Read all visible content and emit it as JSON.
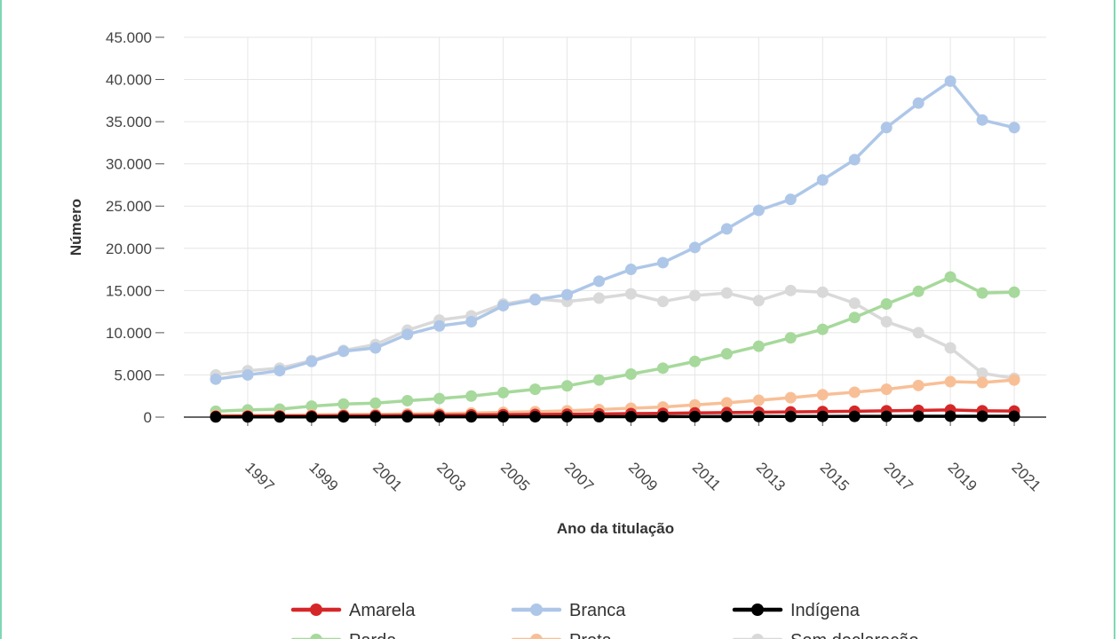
{
  "chart_data": {
    "type": "line",
    "xlabel": "Ano da titulação",
    "ylabel": "Número",
    "x": [
      1996,
      1997,
      1998,
      1999,
      2000,
      2001,
      2002,
      2003,
      2004,
      2005,
      2006,
      2007,
      2008,
      2009,
      2010,
      2011,
      2012,
      2013,
      2014,
      2015,
      2016,
      2017,
      2018,
      2019,
      2020,
      2021
    ],
    "x_tick_labels": [
      "1997",
      "1999",
      "2001",
      "2003",
      "2005",
      "2007",
      "2009",
      "2011",
      "2013",
      "2015",
      "2017",
      "2019",
      "2021"
    ],
    "y_tick_labels": [
      "0",
      "5.000",
      "10.000",
      "15.000",
      "20.000",
      "25.000",
      "30.000",
      "35.000",
      "40.000",
      "45.000"
    ],
    "ylim": [
      0,
      45000
    ],
    "xlim": [
      1995,
      2022
    ],
    "grid": true,
    "legend_position": "bottom",
    "series": [
      {
        "name": "Amarela",
        "color": "#d62728",
        "values": [
          100,
          120,
          130,
          150,
          170,
          190,
          210,
          240,
          260,
          290,
          310,
          340,
          380,
          420,
          450,
          500,
          540,
          580,
          620,
          660,
          700,
          750,
          800,
          850,
          750,
          720
        ]
      },
      {
        "name": "Branca",
        "color": "#aec7e8",
        "values": [
          4500,
          5000,
          5500,
          6600,
          7800,
          8200,
          9800,
          10800,
          11300,
          13200,
          13900,
          14500,
          16100,
          17500,
          18300,
          20100,
          22300,
          24500,
          25800,
          28100,
          30500,
          34300,
          37200,
          39800,
          35200,
          34300
        ]
      },
      {
        "name": "Indígena",
        "color": "#000000",
        "values": [
          20,
          20,
          25,
          25,
          30,
          30,
          35,
          35,
          40,
          40,
          45,
          45,
          50,
          55,
          60,
          65,
          70,
          75,
          80,
          85,
          90,
          95,
          100,
          110,
          100,
          100
        ]
      },
      {
        "name": "Parda",
        "color": "#a6d99b",
        "values": [
          700,
          850,
          950,
          1300,
          1550,
          1650,
          1950,
          2200,
          2500,
          2900,
          3300,
          3700,
          4400,
          5100,
          5800,
          6600,
          7500,
          8400,
          9400,
          10400,
          11800,
          13400,
          14900,
          16600,
          14700,
          14800
        ]
      },
      {
        "name": "Preta",
        "color": "#f8bf96",
        "values": [
          200,
          220,
          240,
          270,
          300,
          330,
          380,
          420,
          480,
          560,
          640,
          750,
          900,
          1050,
          1200,
          1450,
          1700,
          2000,
          2300,
          2650,
          2950,
          3300,
          3750,
          4200,
          4100,
          4400
        ]
      },
      {
        "name": "Sem declaração",
        "color": "#d9d9d9",
        "values": [
          5000,
          5500,
          5800,
          6700,
          7900,
          8600,
          10300,
          11500,
          12000,
          13400,
          14000,
          13700,
          14100,
          14600,
          13700,
          14400,
          14700,
          13800,
          15000,
          14800,
          13500,
          11300,
          10000,
          8200,
          5200,
          4600
        ]
      }
    ]
  }
}
